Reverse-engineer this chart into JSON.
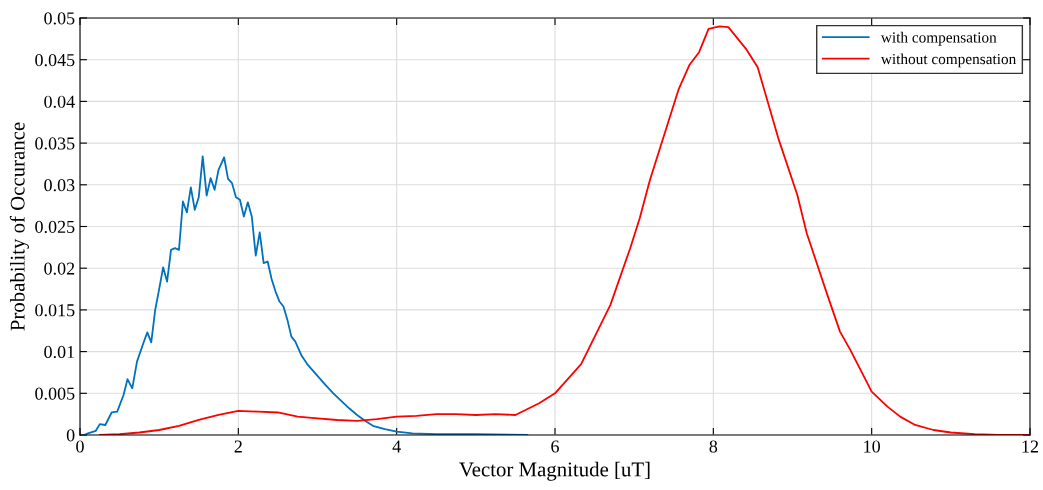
{
  "chart_data": {
    "type": "line",
    "xlabel": "Vector Magnitude [uT]",
    "ylabel": "Probability of Occurance",
    "xlim": [
      0,
      12
    ],
    "xticks": [
      0,
      2,
      4,
      6,
      8,
      10,
      12
    ],
    "ylim": [
      0,
      0.05
    ],
    "yticks": [
      0,
      0.005,
      0.01,
      0.015,
      0.02,
      0.025,
      0.03,
      0.035,
      0.04,
      0.045,
      0.05
    ],
    "grid": true,
    "legend": "top right",
    "marker": "none",
    "line_style": "solid",
    "series": [
      {
        "name": "with compensation",
        "color": "#0072bd",
        "x": [
          0.05,
          0.1,
          0.2,
          0.25,
          0.32,
          0.4,
          0.47,
          0.55,
          0.6,
          0.66,
          0.72,
          0.8,
          0.85,
          0.9,
          0.95,
          1.0,
          1.05,
          1.1,
          1.15,
          1.2,
          1.25,
          1.3,
          1.35,
          1.4,
          1.45,
          1.5,
          1.55,
          1.6,
          1.65,
          1.7,
          1.75,
          1.82,
          1.87,
          1.92,
          1.97,
          2.02,
          2.07,
          2.12,
          2.17,
          2.22,
          2.27,
          2.32,
          2.37,
          2.42,
          2.47,
          2.52,
          2.57,
          2.62,
          2.67,
          2.72,
          2.8,
          2.87,
          3.0,
          3.1,
          3.2,
          3.3,
          3.4,
          3.5,
          3.6,
          3.7,
          3.85,
          4.0,
          4.2,
          4.5,
          5.0,
          5.65
        ],
        "values": [
          0,
          0.0002,
          0.0005,
          0.0013,
          0.0012,
          0.0027,
          0.0028,
          0.0048,
          0.0067,
          0.0056,
          0.0088,
          0.011,
          0.0123,
          0.0111,
          0.015,
          0.0175,
          0.0201,
          0.0184,
          0.0222,
          0.0224,
          0.0222,
          0.028,
          0.0267,
          0.0297,
          0.027,
          0.0285,
          0.0334,
          0.0287,
          0.0308,
          0.0294,
          0.0318,
          0.0333,
          0.0307,
          0.0302,
          0.0285,
          0.0282,
          0.0262,
          0.0279,
          0.0262,
          0.0215,
          0.0243,
          0.0206,
          0.0208,
          0.0187,
          0.0172,
          0.016,
          0.0154,
          0.0138,
          0.0118,
          0.0112,
          0.0095,
          0.0085,
          0.0071,
          0.006,
          0.005,
          0.0041,
          0.0032,
          0.0024,
          0.0017,
          0.0011,
          0.0007,
          0.0004,
          0.0002,
          0.0001,
          0.0001,
          0
        ]
      },
      {
        "name": "without compensation",
        "color": "#ff0000",
        "x": [
          0.25,
          0.5,
          0.75,
          1.0,
          1.25,
          1.5,
          1.75,
          2.0,
          2.25,
          2.5,
          2.75,
          3.0,
          3.25,
          3.5,
          3.75,
          4.0,
          4.25,
          4.5,
          4.75,
          5.0,
          5.25,
          5.5,
          5.8,
          6.0,
          6.33,
          6.7,
          6.95,
          7.07,
          7.2,
          7.56,
          7.7,
          7.82,
          7.94,
          8.08,
          8.19,
          8.42,
          8.56,
          8.82,
          9.06,
          9.18,
          9.44,
          9.6,
          9.73,
          10.0,
          10.2,
          10.36,
          10.55,
          10.78,
          11.0,
          11.3,
          11.6,
          12.0
        ],
        "values": [
          0,
          0.0001,
          0.0003,
          0.0006,
          0.0011,
          0.0018,
          0.0024,
          0.0029,
          0.0028,
          0.0027,
          0.0022,
          0.002,
          0.0018,
          0.0017,
          0.0019,
          0.0022,
          0.0023,
          0.0025,
          0.0025,
          0.0024,
          0.0025,
          0.0024,
          0.0038,
          0.005,
          0.0085,
          0.0156,
          0.0224,
          0.026,
          0.0306,
          0.0414,
          0.0444,
          0.0459,
          0.0487,
          0.049,
          0.0489,
          0.0462,
          0.0441,
          0.0356,
          0.0288,
          0.0242,
          0.0168,
          0.0124,
          0.0102,
          0.0052,
          0.0034,
          0.0022,
          0.0012,
          0.0006,
          0.0003,
          0.0001,
          0,
          0
        ]
      }
    ]
  }
}
